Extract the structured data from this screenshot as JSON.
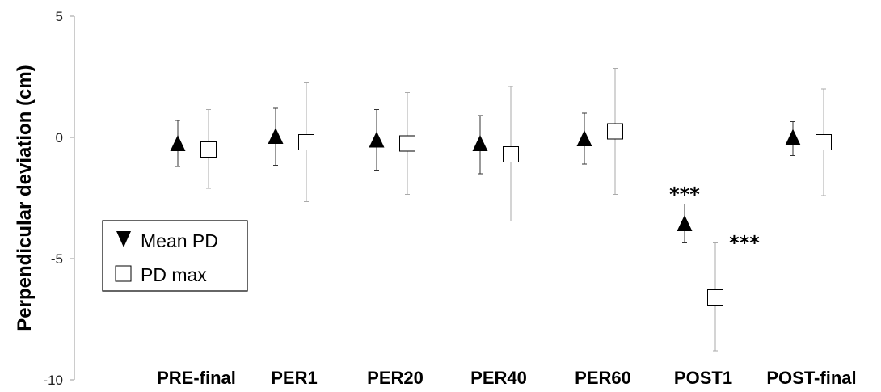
{
  "chart_data": {
    "type": "scatter",
    "ylabel": "Perpendicular deviation (cm)",
    "ylim": [
      -10,
      5
    ],
    "yticks": [
      5,
      0,
      -5,
      -10
    ],
    "grid": false,
    "legend_position": "left",
    "categories": [
      "PRE-final",
      "PER1",
      "PER20",
      "PER40",
      "PER60",
      "POST1",
      "POST-final"
    ],
    "series": [
      {
        "name": "Mean PD",
        "marker": "filled-triangle",
        "color": "#000000",
        "values": [
          -0.3,
          0.0,
          -0.15,
          -0.3,
          -0.1,
          -3.6,
          -0.05
        ],
        "error_low": [
          -1.2,
          -1.15,
          -1.35,
          -1.5,
          -1.1,
          -4.35,
          -0.75
        ],
        "error_high": [
          0.7,
          1.2,
          1.15,
          0.9,
          1.0,
          -2.75,
          0.65
        ]
      },
      {
        "name": "PD max",
        "marker": "open-square",
        "color": "#000000",
        "values": [
          -0.5,
          -0.2,
          -0.25,
          -0.7,
          0.25,
          -6.6,
          -0.2
        ],
        "error_low": [
          -2.1,
          -2.65,
          -2.35,
          -3.45,
          -2.35,
          -8.8,
          -2.4
        ],
        "error_high": [
          1.15,
          2.25,
          1.85,
          2.1,
          2.85,
          -4.35,
          2.0
        ]
      }
    ],
    "annotations": [
      {
        "text": "***",
        "series": 0,
        "category": "POST1"
      },
      {
        "text": "***",
        "series": 1,
        "category": "POST1"
      }
    ]
  }
}
